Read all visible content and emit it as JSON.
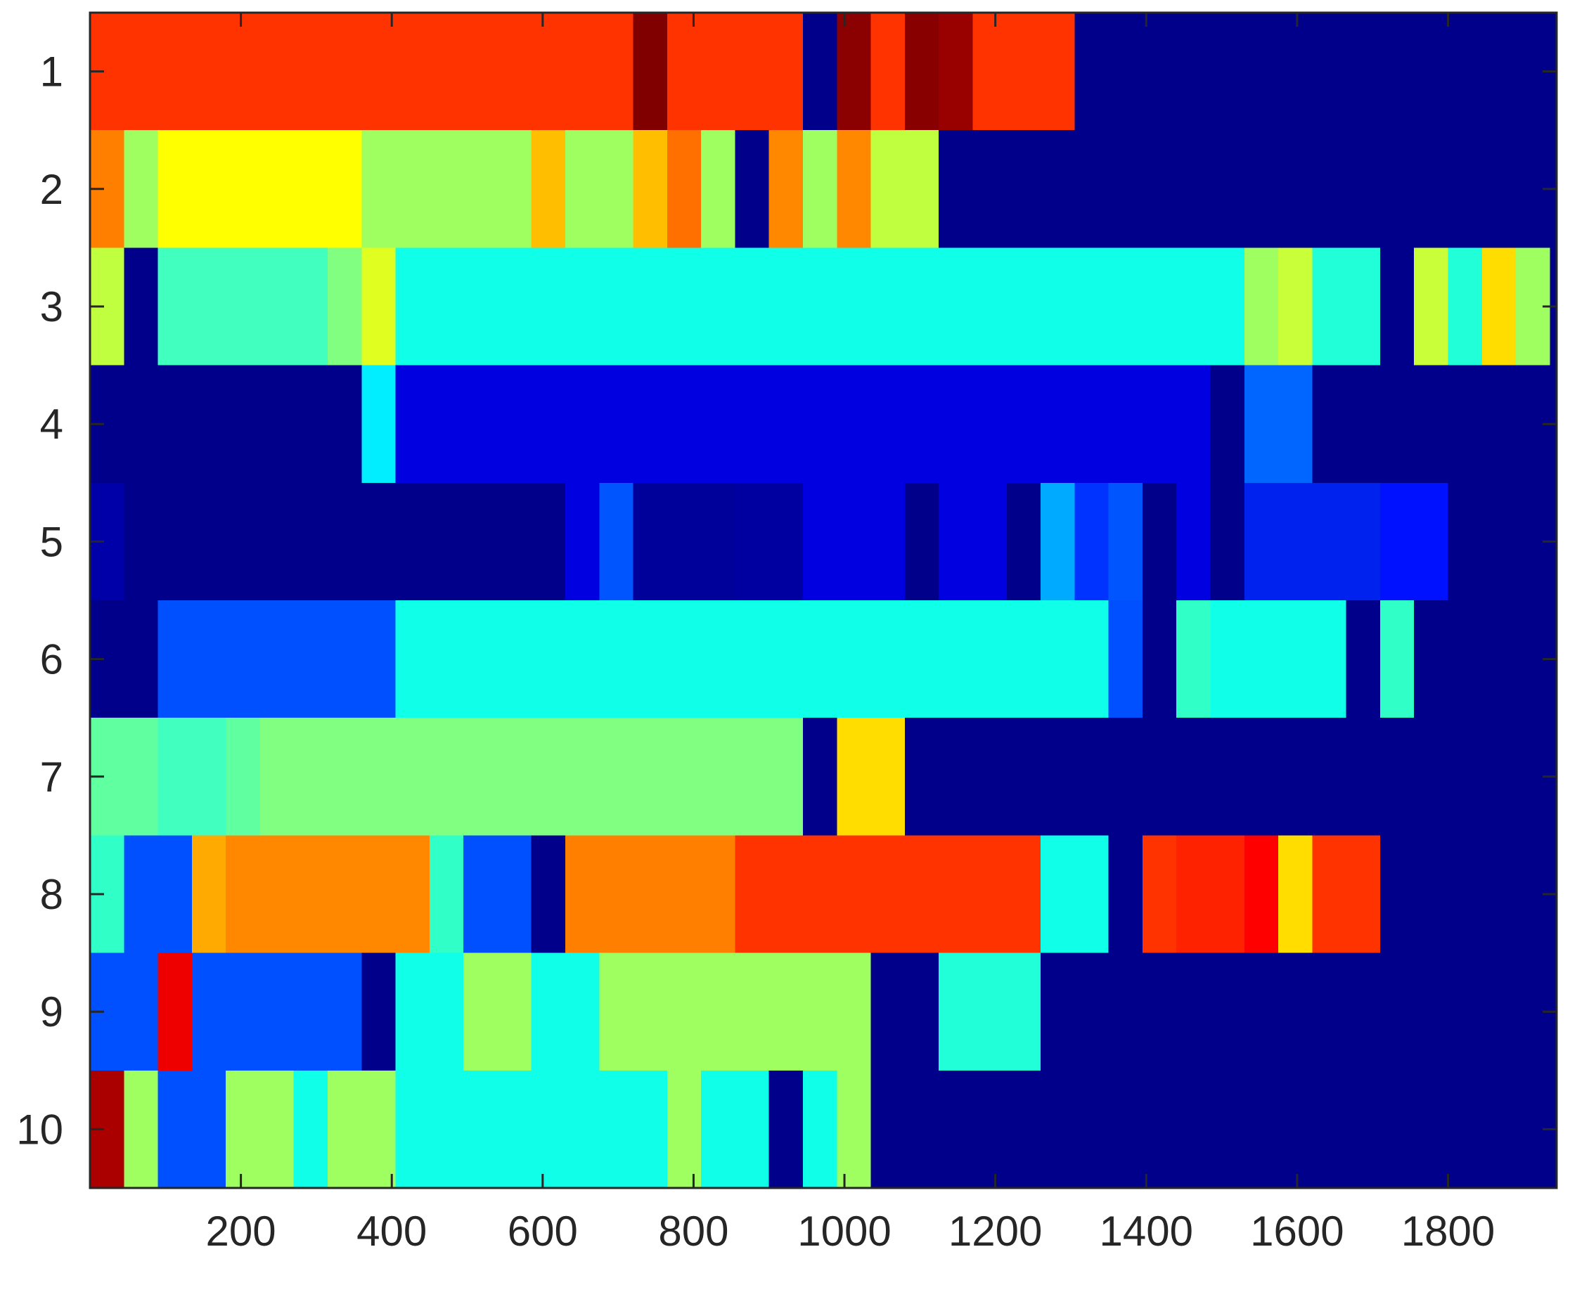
{
  "chart_data": {
    "type": "heatmap",
    "title": "",
    "xlabel": "",
    "ylabel": "",
    "xlim": [
      0,
      1944
    ],
    "x_ticks": [
      200,
      400,
      600,
      800,
      1000,
      1200,
      1400,
      1600,
      1800
    ],
    "x_tick_labels": [
      "200",
      "400",
      "600",
      "800",
      "1000",
      "1200",
      "1400",
      "1600",
      "1800"
    ],
    "y_tick_labels": [
      "1",
      "2",
      "3",
      "4",
      "5",
      "6",
      "7",
      "8",
      "9",
      "10"
    ],
    "grid": false,
    "legend": "none",
    "colormap": "jet",
    "rows": [
      {
        "label": "1",
        "segments": [
          {
            "x0": 0,
            "x1": 720,
            "color": "#ff3300"
          },
          {
            "x0": 720,
            "x1": 765,
            "color": "#800000"
          },
          {
            "x0": 765,
            "x1": 945,
            "color": "#ff3300"
          },
          {
            "x0": 945,
            "x1": 990,
            "color": "#00008b"
          },
          {
            "x0": 990,
            "x1": 1035,
            "color": "#8b0000"
          },
          {
            "x0": 1035,
            "x1": 1080,
            "color": "#ff3300"
          },
          {
            "x0": 1080,
            "x1": 1125,
            "color": "#880000"
          },
          {
            "x0": 1125,
            "x1": 1170,
            "color": "#990000"
          },
          {
            "x0": 1170,
            "x1": 1305,
            "color": "#ff3300"
          },
          {
            "x0": 1305,
            "x1": 1944,
            "color": "#00008b"
          }
        ]
      },
      {
        "label": "2",
        "segments": [
          {
            "x0": 0,
            "x1": 45,
            "color": "#ff8000"
          },
          {
            "x0": 45,
            "x1": 90,
            "color": "#a0ff60"
          },
          {
            "x0": 90,
            "x1": 360,
            "color": "#ffff00"
          },
          {
            "x0": 360,
            "x1": 585,
            "color": "#a0ff60"
          },
          {
            "x0": 585,
            "x1": 630,
            "color": "#ffbf00"
          },
          {
            "x0": 630,
            "x1": 720,
            "color": "#a0ff60"
          },
          {
            "x0": 720,
            "x1": 765,
            "color": "#ffbf00"
          },
          {
            "x0": 765,
            "x1": 810,
            "color": "#ff7000"
          },
          {
            "x0": 810,
            "x1": 855,
            "color": "#a0ff60"
          },
          {
            "x0": 855,
            "x1": 900,
            "color": "#00008b"
          },
          {
            "x0": 900,
            "x1": 945,
            "color": "#ff8800"
          },
          {
            "x0": 945,
            "x1": 990,
            "color": "#a0ff60"
          },
          {
            "x0": 990,
            "x1": 1035,
            "color": "#ff8800"
          },
          {
            "x0": 1035,
            "x1": 1125,
            "color": "#c0ff40"
          },
          {
            "x0": 1125,
            "x1": 1944,
            "color": "#00008b"
          }
        ]
      },
      {
        "label": "3",
        "segments": [
          {
            "x0": 0,
            "x1": 45,
            "color": "#c0ff40"
          },
          {
            "x0": 45,
            "x1": 90,
            "color": "#00008b"
          },
          {
            "x0": 90,
            "x1": 315,
            "color": "#40ffbf"
          },
          {
            "x0": 315,
            "x1": 360,
            "color": "#80ff80"
          },
          {
            "x0": 360,
            "x1": 405,
            "color": "#e0ff20"
          },
          {
            "x0": 405,
            "x1": 1530,
            "color": "#10ffe8"
          },
          {
            "x0": 1530,
            "x1": 1575,
            "color": "#a0ff60"
          },
          {
            "x0": 1575,
            "x1": 1620,
            "color": "#c8ff38"
          },
          {
            "x0": 1620,
            "x1": 1710,
            "color": "#20ffd8"
          },
          {
            "x0": 1710,
            "x1": 1755,
            "color": "#00008b"
          },
          {
            "x0": 1755,
            "x1": 1800,
            "color": "#c8ff38"
          },
          {
            "x0": 1800,
            "x1": 1845,
            "color": "#20ffd8"
          },
          {
            "x0": 1845,
            "x1": 1890,
            "color": "#ffdd00"
          },
          {
            "x0": 1890,
            "x1": 1935,
            "color": "#a0ff60"
          },
          {
            "x0": 1935,
            "x1": 1944,
            "color": "#00008b"
          }
        ]
      },
      {
        "label": "4",
        "segments": [
          {
            "x0": 0,
            "x1": 360,
            "color": "#00008b"
          },
          {
            "x0": 360,
            "x1": 405,
            "color": "#00eeff"
          },
          {
            "x0": 405,
            "x1": 1485,
            "color": "#0000e0"
          },
          {
            "x0": 1485,
            "x1": 1530,
            "color": "#00008b"
          },
          {
            "x0": 1530,
            "x1": 1620,
            "color": "#0066ff"
          },
          {
            "x0": 1620,
            "x1": 1944,
            "color": "#00008b"
          }
        ]
      },
      {
        "label": "5",
        "segments": [
          {
            "x0": 0,
            "x1": 45,
            "color": "#0000a8"
          },
          {
            "x0": 45,
            "x1": 630,
            "color": "#00008b"
          },
          {
            "x0": 630,
            "x1": 675,
            "color": "#0000e0"
          },
          {
            "x0": 675,
            "x1": 720,
            "color": "#0055ff"
          },
          {
            "x0": 720,
            "x1": 855,
            "color": "#00009a"
          },
          {
            "x0": 855,
            "x1": 945,
            "color": "#0000a0"
          },
          {
            "x0": 945,
            "x1": 1080,
            "color": "#0000e0"
          },
          {
            "x0": 1080,
            "x1": 1125,
            "color": "#00008b"
          },
          {
            "x0": 1125,
            "x1": 1215,
            "color": "#0000e0"
          },
          {
            "x0": 1215,
            "x1": 1260,
            "color": "#00008b"
          },
          {
            "x0": 1260,
            "x1": 1305,
            "color": "#00aaff"
          },
          {
            "x0": 1305,
            "x1": 1350,
            "color": "#0033ff"
          },
          {
            "x0": 1350,
            "x1": 1395,
            "color": "#0055ff"
          },
          {
            "x0": 1395,
            "x1": 1440,
            "color": "#00008b"
          },
          {
            "x0": 1440,
            "x1": 1485,
            "color": "#0000e0"
          },
          {
            "x0": 1485,
            "x1": 1530,
            "color": "#00008b"
          },
          {
            "x0": 1530,
            "x1": 1710,
            "color": "#0022ee"
          },
          {
            "x0": 1710,
            "x1": 1800,
            "color": "#0011ff"
          },
          {
            "x0": 1800,
            "x1": 1944,
            "color": "#00008b"
          }
        ]
      },
      {
        "label": "6",
        "segments": [
          {
            "x0": 0,
            "x1": 90,
            "color": "#00008b"
          },
          {
            "x0": 90,
            "x1": 405,
            "color": "#0050ff"
          },
          {
            "x0": 405,
            "x1": 1350,
            "color": "#10ffe8"
          },
          {
            "x0": 1350,
            "x1": 1395,
            "color": "#0050ff"
          },
          {
            "x0": 1395,
            "x1": 1440,
            "color": "#00008b"
          },
          {
            "x0": 1440,
            "x1": 1485,
            "color": "#30ffc8"
          },
          {
            "x0": 1485,
            "x1": 1665,
            "color": "#10ffe8"
          },
          {
            "x0": 1665,
            "x1": 1710,
            "color": "#00008b"
          },
          {
            "x0": 1710,
            "x1": 1755,
            "color": "#30ffc8"
          },
          {
            "x0": 1755,
            "x1": 1944,
            "color": "#00008b"
          }
        ]
      },
      {
        "label": "7",
        "segments": [
          {
            "x0": 0,
            "x1": 90,
            "color": "#60ffa0"
          },
          {
            "x0": 90,
            "x1": 180,
            "color": "#40ffbf"
          },
          {
            "x0": 180,
            "x1": 225,
            "color": "#60ffa0"
          },
          {
            "x0": 225,
            "x1": 945,
            "color": "#80ff80"
          },
          {
            "x0": 945,
            "x1": 990,
            "color": "#00008b"
          },
          {
            "x0": 990,
            "x1": 1080,
            "color": "#ffdd00"
          },
          {
            "x0": 1080,
            "x1": 1944,
            "color": "#00008b"
          }
        ]
      },
      {
        "label": "8",
        "segments": [
          {
            "x0": 0,
            "x1": 45,
            "color": "#30ffc8"
          },
          {
            "x0": 45,
            "x1": 135,
            "color": "#0050ff"
          },
          {
            "x0": 135,
            "x1": 180,
            "color": "#ffaa00"
          },
          {
            "x0": 180,
            "x1": 450,
            "color": "#ff8800"
          },
          {
            "x0": 450,
            "x1": 495,
            "color": "#30ffc8"
          },
          {
            "x0": 495,
            "x1": 585,
            "color": "#0050ff"
          },
          {
            "x0": 585,
            "x1": 630,
            "color": "#00008b"
          },
          {
            "x0": 630,
            "x1": 855,
            "color": "#ff8000"
          },
          {
            "x0": 855,
            "x1": 1260,
            "color": "#ff3300"
          },
          {
            "x0": 1260,
            "x1": 1350,
            "color": "#10ffe8"
          },
          {
            "x0": 1350,
            "x1": 1395,
            "color": "#00008b"
          },
          {
            "x0": 1395,
            "x1": 1440,
            "color": "#ff3300"
          },
          {
            "x0": 1440,
            "x1": 1530,
            "color": "#ff2200"
          },
          {
            "x0": 1530,
            "x1": 1575,
            "color": "#ff0000"
          },
          {
            "x0": 1575,
            "x1": 1620,
            "color": "#ffdd00"
          },
          {
            "x0": 1620,
            "x1": 1710,
            "color": "#ff3300"
          },
          {
            "x0": 1710,
            "x1": 1944,
            "color": "#00008b"
          }
        ]
      },
      {
        "label": "9",
        "segments": [
          {
            "x0": 0,
            "x1": 90,
            "color": "#0050ff"
          },
          {
            "x0": 90,
            "x1": 135,
            "color": "#ee0000"
          },
          {
            "x0": 135,
            "x1": 360,
            "color": "#0050ff"
          },
          {
            "x0": 360,
            "x1": 405,
            "color": "#00008b"
          },
          {
            "x0": 405,
            "x1": 495,
            "color": "#10ffe8"
          },
          {
            "x0": 495,
            "x1": 585,
            "color": "#a0ff60"
          },
          {
            "x0": 585,
            "x1": 675,
            "color": "#10ffe8"
          },
          {
            "x0": 675,
            "x1": 1035,
            "color": "#a0ff60"
          },
          {
            "x0": 1035,
            "x1": 1125,
            "color": "#00008b"
          },
          {
            "x0": 1125,
            "x1": 1260,
            "color": "#20ffd8"
          },
          {
            "x0": 1260,
            "x1": 1944,
            "color": "#00008b"
          }
        ]
      },
      {
        "label": "10",
        "segments": [
          {
            "x0": 0,
            "x1": 45,
            "color": "#aa0000"
          },
          {
            "x0": 45,
            "x1": 90,
            "color": "#a0ff60"
          },
          {
            "x0": 90,
            "x1": 180,
            "color": "#0050ff"
          },
          {
            "x0": 180,
            "x1": 270,
            "color": "#a0ff60"
          },
          {
            "x0": 270,
            "x1": 315,
            "color": "#10ffe8"
          },
          {
            "x0": 315,
            "x1": 405,
            "color": "#a0ff60"
          },
          {
            "x0": 405,
            "x1": 765,
            "color": "#10ffe8"
          },
          {
            "x0": 765,
            "x1": 810,
            "color": "#a0ff60"
          },
          {
            "x0": 810,
            "x1": 900,
            "color": "#10ffe8"
          },
          {
            "x0": 900,
            "x1": 945,
            "color": "#00008b"
          },
          {
            "x0": 945,
            "x1": 990,
            "color": "#10ffe8"
          },
          {
            "x0": 990,
            "x1": 1035,
            "color": "#a0ff60"
          },
          {
            "x0": 1035,
            "x1": 1944,
            "color": "#00008b"
          }
        ]
      }
    ]
  }
}
